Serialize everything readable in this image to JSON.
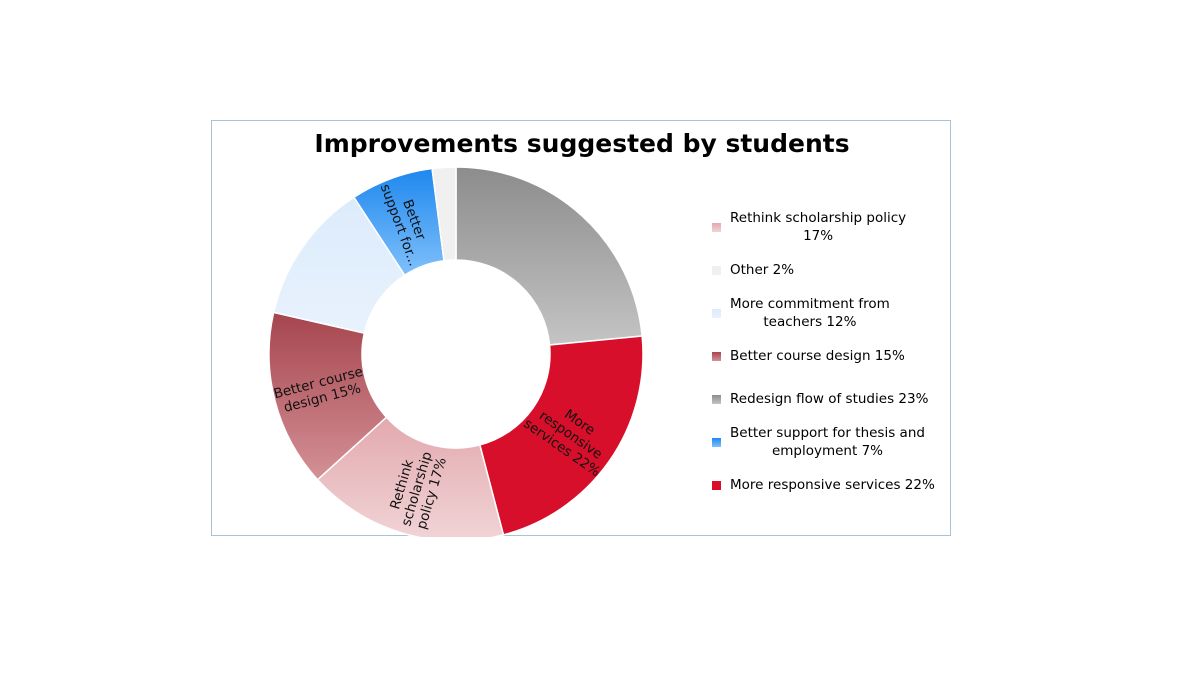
{
  "chart_data": {
    "type": "pie",
    "variant": "donut",
    "title": "Improvements suggested by students",
    "start_angle_deg": 0,
    "direction": "clockwise",
    "slices": [
      {
        "name": "Redesign flow of studies",
        "value": 23,
        "legend": "Redesign flow of studies 23%",
        "slice_label": [],
        "color_from": "#8c8c8c",
        "color_to": "#c4c4c4"
      },
      {
        "name": "More responsive services",
        "value": 22,
        "legend": "More responsive services 22%",
        "slice_label": [
          "More",
          "responsive",
          "services 22%"
        ],
        "color_from": "#d80f2b",
        "color_to": "#d80f2b"
      },
      {
        "name": "Rethink scholarship policy",
        "value": 17,
        "legend": "Rethink scholarship policy 17%",
        "slice_label": [
          "Rethink",
          "scholarship",
          "policy 17%"
        ],
        "color_from": "#e2a9ae",
        "color_to": "#f1d4d6"
      },
      {
        "name": "Better course design",
        "value": 15,
        "legend": "Better course design 15%",
        "slice_label": [
          "Better course",
          "design 15%"
        ],
        "color_from": "#a6454e",
        "color_to": "#d39196"
      },
      {
        "name": "More commitment from teachers",
        "value": 12,
        "legend": "More commitment from teachers 12%",
        "slice_label": [],
        "color_from": "#dcebfb",
        "color_to": "#e8f2fd"
      },
      {
        "name": "Better support for thesis and employment",
        "value": 7,
        "legend": "Better support for thesis and employment 7%",
        "slice_label": [
          "Better",
          "support for..."
        ],
        "color_from": "#1e88ee",
        "color_to": "#80c0fb"
      },
      {
        "name": "Other",
        "value": 2,
        "legend": "Other 2%",
        "slice_label": [],
        "color_from": "#f0f0f0",
        "color_to": "#f0f0f0"
      }
    ],
    "legend_order": [
      {
        "index": 2,
        "lines": [
          "Rethink scholarship policy",
          "17%"
        ]
      },
      {
        "index": 6,
        "lines": [
          "Other 2%"
        ]
      },
      {
        "index": 4,
        "lines": [
          "More commitment from",
          "teachers 12%"
        ]
      },
      {
        "index": 3,
        "lines": [
          "Better course design 15%"
        ]
      },
      {
        "index": 0,
        "lines": [
          "Redesign flow of studies 23%"
        ]
      },
      {
        "index": 5,
        "lines": [
          "Better support for thesis and",
          "employment 7%"
        ]
      },
      {
        "index": 1,
        "lines": [
          "More responsive services 22%"
        ]
      }
    ],
    "legend_position": "right"
  }
}
